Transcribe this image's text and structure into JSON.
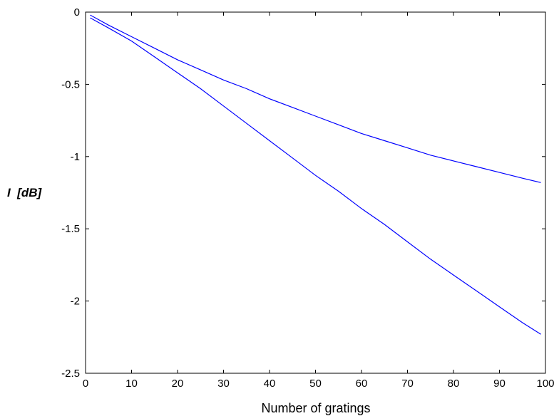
{
  "chart_data": {
    "type": "line",
    "title": "",
    "xlabel": "Number of gratings",
    "ylabel": "I  [dB]",
    "xlim": [
      0,
      100
    ],
    "ylim": [
      -2.5,
      0
    ],
    "xticks": [
      0,
      10,
      20,
      30,
      40,
      50,
      60,
      70,
      80,
      90,
      100
    ],
    "yticks": [
      0,
      -0.5,
      -1,
      -1.5,
      -2,
      -2.5
    ],
    "xtick_labels": [
      "0",
      "10",
      "20",
      "30",
      "40",
      "50",
      "60",
      "70",
      "80",
      "90",
      "100"
    ],
    "ytick_labels": [
      "0",
      "-0.5",
      "-1",
      "-1.5",
      "-2",
      "-2.5"
    ],
    "grid": false,
    "legend": "none",
    "line_color": "#0000ff",
    "series": [
      {
        "x": [
          1,
          5,
          10,
          15,
          20,
          25,
          30,
          35,
          40,
          45,
          50,
          55,
          60,
          65,
          70,
          75,
          80,
          85,
          90,
          95,
          99
        ],
        "values": [
          -0.02,
          -0.09,
          -0.17,
          -0.25,
          -0.33,
          -0.4,
          -0.47,
          -0.53,
          -0.6,
          -0.66,
          -0.72,
          -0.78,
          -0.84,
          -0.89,
          -0.94,
          -0.99,
          -1.03,
          -1.07,
          -1.11,
          -1.15,
          -1.18
        ]
      },
      {
        "x": [
          1,
          5,
          10,
          15,
          20,
          25,
          30,
          35,
          40,
          45,
          50,
          55,
          60,
          65,
          70,
          75,
          80,
          85,
          90,
          95,
          99
        ],
        "values": [
          -0.04,
          -0.11,
          -0.2,
          -0.31,
          -0.42,
          -0.53,
          -0.65,
          -0.77,
          -0.89,
          -1.01,
          -1.13,
          -1.24,
          -1.36,
          -1.47,
          -1.59,
          -1.71,
          -1.82,
          -1.93,
          -2.04,
          -2.15,
          -2.23
        ]
      }
    ]
  }
}
